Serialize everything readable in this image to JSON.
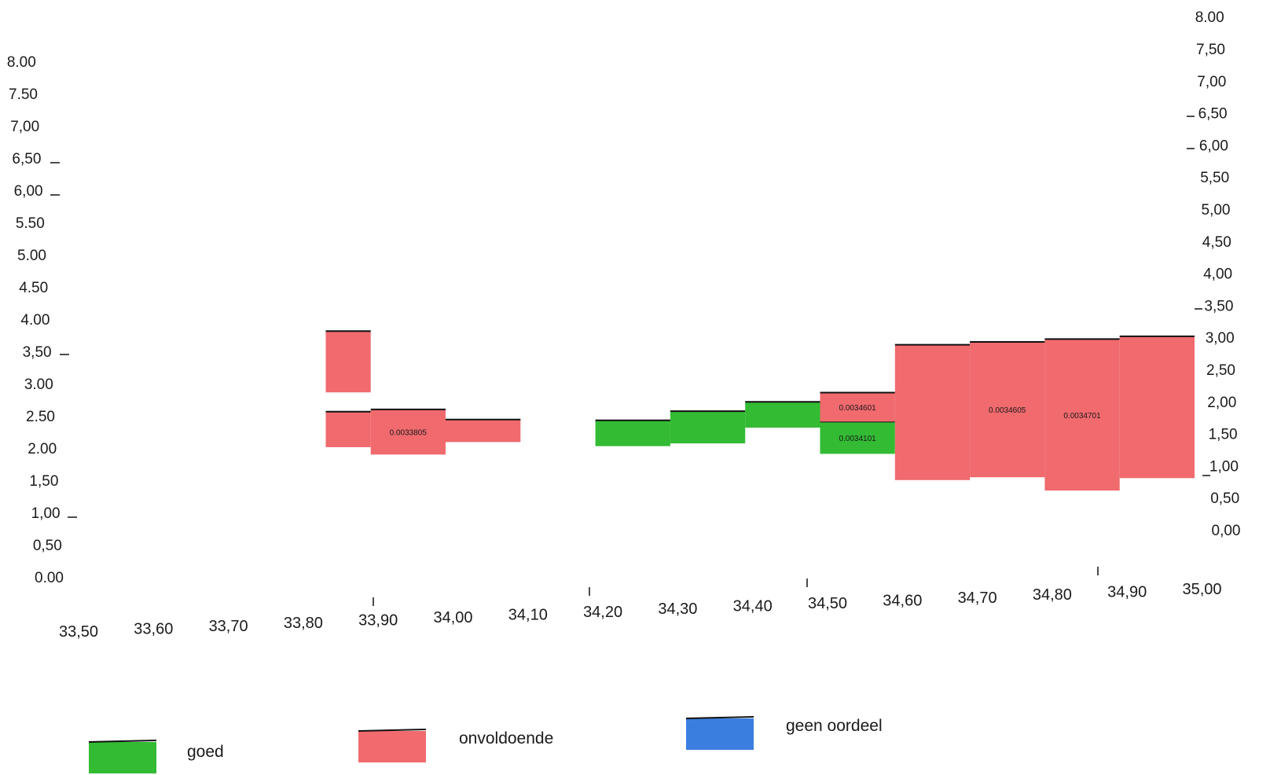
{
  "chart_data": {
    "type": "bar",
    "title": "",
    "xlabel": "",
    "ylabel": "",
    "x_ticks": [
      "33,50",
      "33,60",
      "33,70",
      "33,80",
      "33,90",
      "34,00",
      "34,10",
      "34,20",
      "34,30",
      "34,40",
      "34,50",
      "34,60",
      "34,70",
      "34,80",
      "34,90",
      "35,00"
    ],
    "y_ticks_left": [
      "0.00",
      "0,50",
      "1,00",
      "1,50",
      "2.00",
      "2.50",
      "3.00",
      "3,50",
      "4.00",
      "4.50",
      "5.00",
      "5.50",
      "6,00",
      "6,50",
      "7,00",
      "7.50",
      "8.00"
    ],
    "y_ticks_right": [
      "0,00",
      "0,50",
      "1,00",
      "1,50",
      "2,00",
      "2,50",
      "3,00",
      "3,50",
      "4,00",
      "4,50",
      "5,00",
      "5,50",
      "6,00",
      "6,50",
      "7,00",
      "7,50",
      "8.00"
    ],
    "xlim": [
      33.5,
      35.0
    ],
    "ylim": [
      0,
      8
    ],
    "grid": false,
    "legend_position": "bottom",
    "colors": {
      "goed": "#33bb33",
      "onvoldoende": "#f06a6e",
      "geen oordeel": "#3a7fe0"
    },
    "legend": [
      {
        "key": "goed",
        "label": "goed"
      },
      {
        "key": "onvoldoende",
        "label": "onvoldoende"
      },
      {
        "key": "geen oordeel",
        "label": "geen oordeel"
      }
    ],
    "segments": [
      {
        "x0": 33.83,
        "x1": 33.89,
        "y0": 3.0,
        "y1": 3.95,
        "class": "onvoldoende",
        "label": ""
      },
      {
        "x0": 33.83,
        "x1": 33.89,
        "y0": 2.15,
        "y1": 2.7,
        "class": "onvoldoende",
        "label": ""
      },
      {
        "x0": 33.89,
        "x1": 33.99,
        "y0": 2.0,
        "y1": 2.7,
        "class": "onvoldoende",
        "label": "0.0033805"
      },
      {
        "x0": 33.99,
        "x1": 34.09,
        "y0": 2.15,
        "y1": 2.5,
        "class": "onvoldoende",
        "label": ""
      },
      {
        "x0": 34.19,
        "x1": 34.29,
        "y0": 2.0,
        "y1": 2.4,
        "class": "goed",
        "label": ""
      },
      {
        "x0": 34.29,
        "x1": 34.39,
        "y0": 2.0,
        "y1": 2.5,
        "class": "goed",
        "label": ""
      },
      {
        "x0": 34.39,
        "x1": 34.49,
        "y0": 2.2,
        "y1": 2.6,
        "class": "goed",
        "label": ""
      },
      {
        "x0": 34.49,
        "x1": 34.59,
        "y0": 1.75,
        "y1": 2.25,
        "class": "goed",
        "label": "0.0034101"
      },
      {
        "x0": 34.49,
        "x1": 34.59,
        "y0": 2.25,
        "y1": 2.7,
        "class": "onvoldoende",
        "label": "0.0034601"
      },
      {
        "x0": 34.59,
        "x1": 34.69,
        "y0": 1.3,
        "y1": 3.4,
        "class": "onvoldoende",
        "label": ""
      },
      {
        "x0": 34.69,
        "x1": 34.79,
        "y0": 1.3,
        "y1": 3.4,
        "class": "onvoldoende",
        "label": "0.0034605"
      },
      {
        "x0": 34.79,
        "x1": 34.89,
        "y0": 1.05,
        "y1": 3.4,
        "class": "onvoldoende",
        "label": "0.0034701"
      },
      {
        "x0": 34.89,
        "x1": 34.99,
        "y0": 1.2,
        "y1": 3.4,
        "class": "onvoldoende",
        "label": ""
      }
    ]
  }
}
